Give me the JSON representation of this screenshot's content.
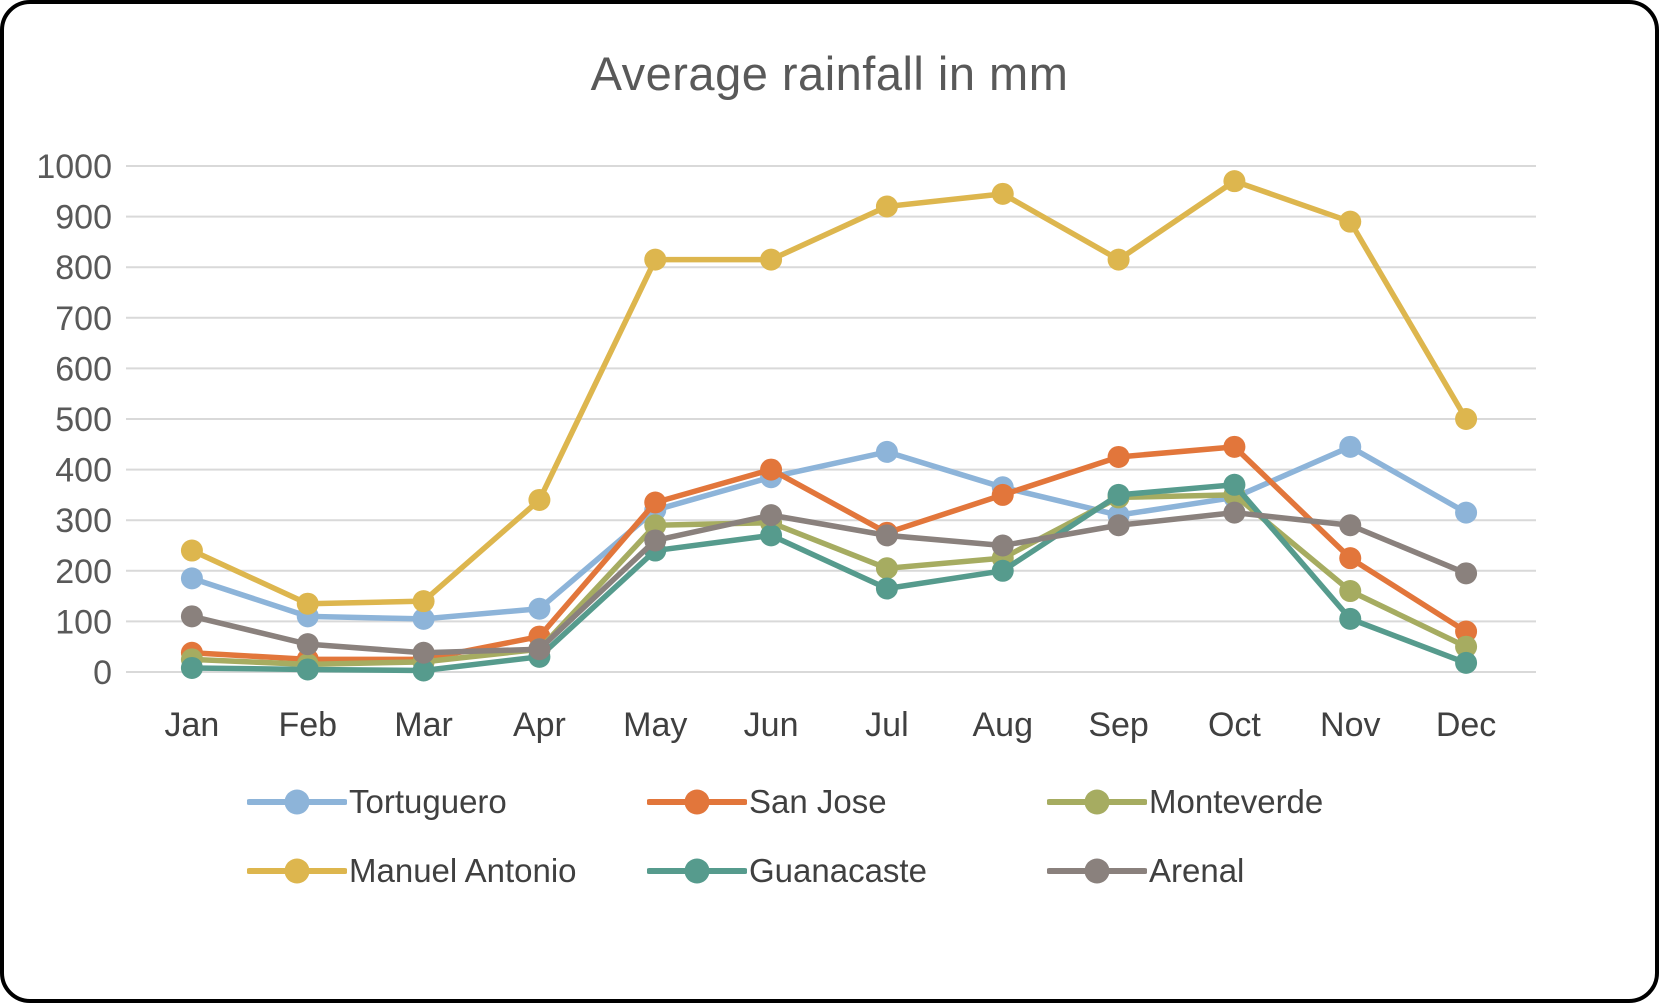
{
  "title": "Average rainfall in mm",
  "chart_data": {
    "type": "line",
    "title": "Average rainfall in mm",
    "categories": [
      "Jan",
      "Feb",
      "Mar",
      "Apr",
      "May",
      "Jun",
      "Jul",
      "Aug",
      "Sep",
      "Oct",
      "Nov",
      "Dec"
    ],
    "series": [
      {
        "name": "Tortuguero",
        "color": "#8DB4D9",
        "values": [
          185,
          110,
          105,
          125,
          320,
          385,
          435,
          365,
          310,
          345,
          445,
          315
        ]
      },
      {
        "name": "San Jose",
        "color": "#E2763B",
        "values": [
          38,
          25,
          25,
          70,
          335,
          400,
          275,
          350,
          425,
          445,
          225,
          80
        ]
      },
      {
        "name": "Monteverde",
        "color": "#A6AC61",
        "values": [
          25,
          15,
          20,
          45,
          290,
          295,
          205,
          225,
          345,
          350,
          160,
          50
        ]
      },
      {
        "name": "Manuel Antonio",
        "color": "#DDB64E",
        "values": [
          240,
          135,
          140,
          340,
          815,
          815,
          920,
          945,
          815,
          970,
          890,
          500
        ]
      },
      {
        "name": "Guanacaste",
        "color": "#569B8D",
        "values": [
          8,
          5,
          3,
          30,
          240,
          270,
          165,
          200,
          350,
          370,
          105,
          18
        ]
      },
      {
        "name": "Arenal",
        "color": "#8A817D",
        "values": [
          110,
          55,
          38,
          45,
          260,
          310,
          270,
          250,
          290,
          315,
          290,
          195
        ]
      }
    ],
    "xlabel": "",
    "ylabel": "",
    "ylim": [
      0,
      1000
    ],
    "ytick_step": 100,
    "grid": true,
    "gridline_color": "#D9D9D9",
    "legend_position": "bottom"
  }
}
